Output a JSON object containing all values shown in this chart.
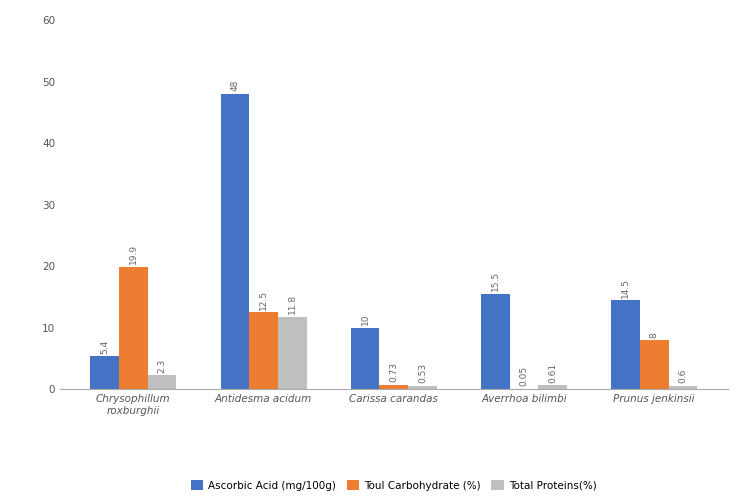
{
  "categories": [
    "Chrysophillum\nroxburghii",
    "Antidesma acidum",
    "Carissa carandas",
    "Averrhoa bilimbi",
    "Prunus jenkinsii"
  ],
  "ascorbic_acid": [
    5.4,
    48,
    10,
    15.5,
    14.5
  ],
  "total_carbohydrate": [
    19.9,
    12.5,
    0.73,
    0.05,
    8
  ],
  "total_protein": [
    2.3,
    11.8,
    0.53,
    0.61,
    0.6
  ],
  "ascorbic_acid_labels": [
    "5.4",
    "48",
    "10",
    "15.5",
    "14.5"
  ],
  "carbohydrate_labels": [
    "19.9",
    "12.5",
    "0.73",
    "0.05",
    "8"
  ],
  "protein_labels": [
    "2.3",
    "11.8",
    "0.53",
    "0.61",
    "0.6"
  ],
  "color_blue": "#4472C4",
  "color_orange": "#ED7D31",
  "color_gray": "#BFBFBF",
  "ylim": [
    0,
    60
  ],
  "yticks": [
    0,
    10,
    20,
    30,
    40,
    50,
    60
  ],
  "legend_labels": [
    "Ascorbic Acid (mg/100g)",
    "Toul Carbohydrate (%)",
    "Total Proteins(%)"
  ],
  "bar_width": 0.22,
  "label_fontsize": 6.5,
  "tick_fontsize": 7.5,
  "legend_fontsize": 7.5,
  "xtick_fontsize": 7.5,
  "background_color": "#ffffff"
}
